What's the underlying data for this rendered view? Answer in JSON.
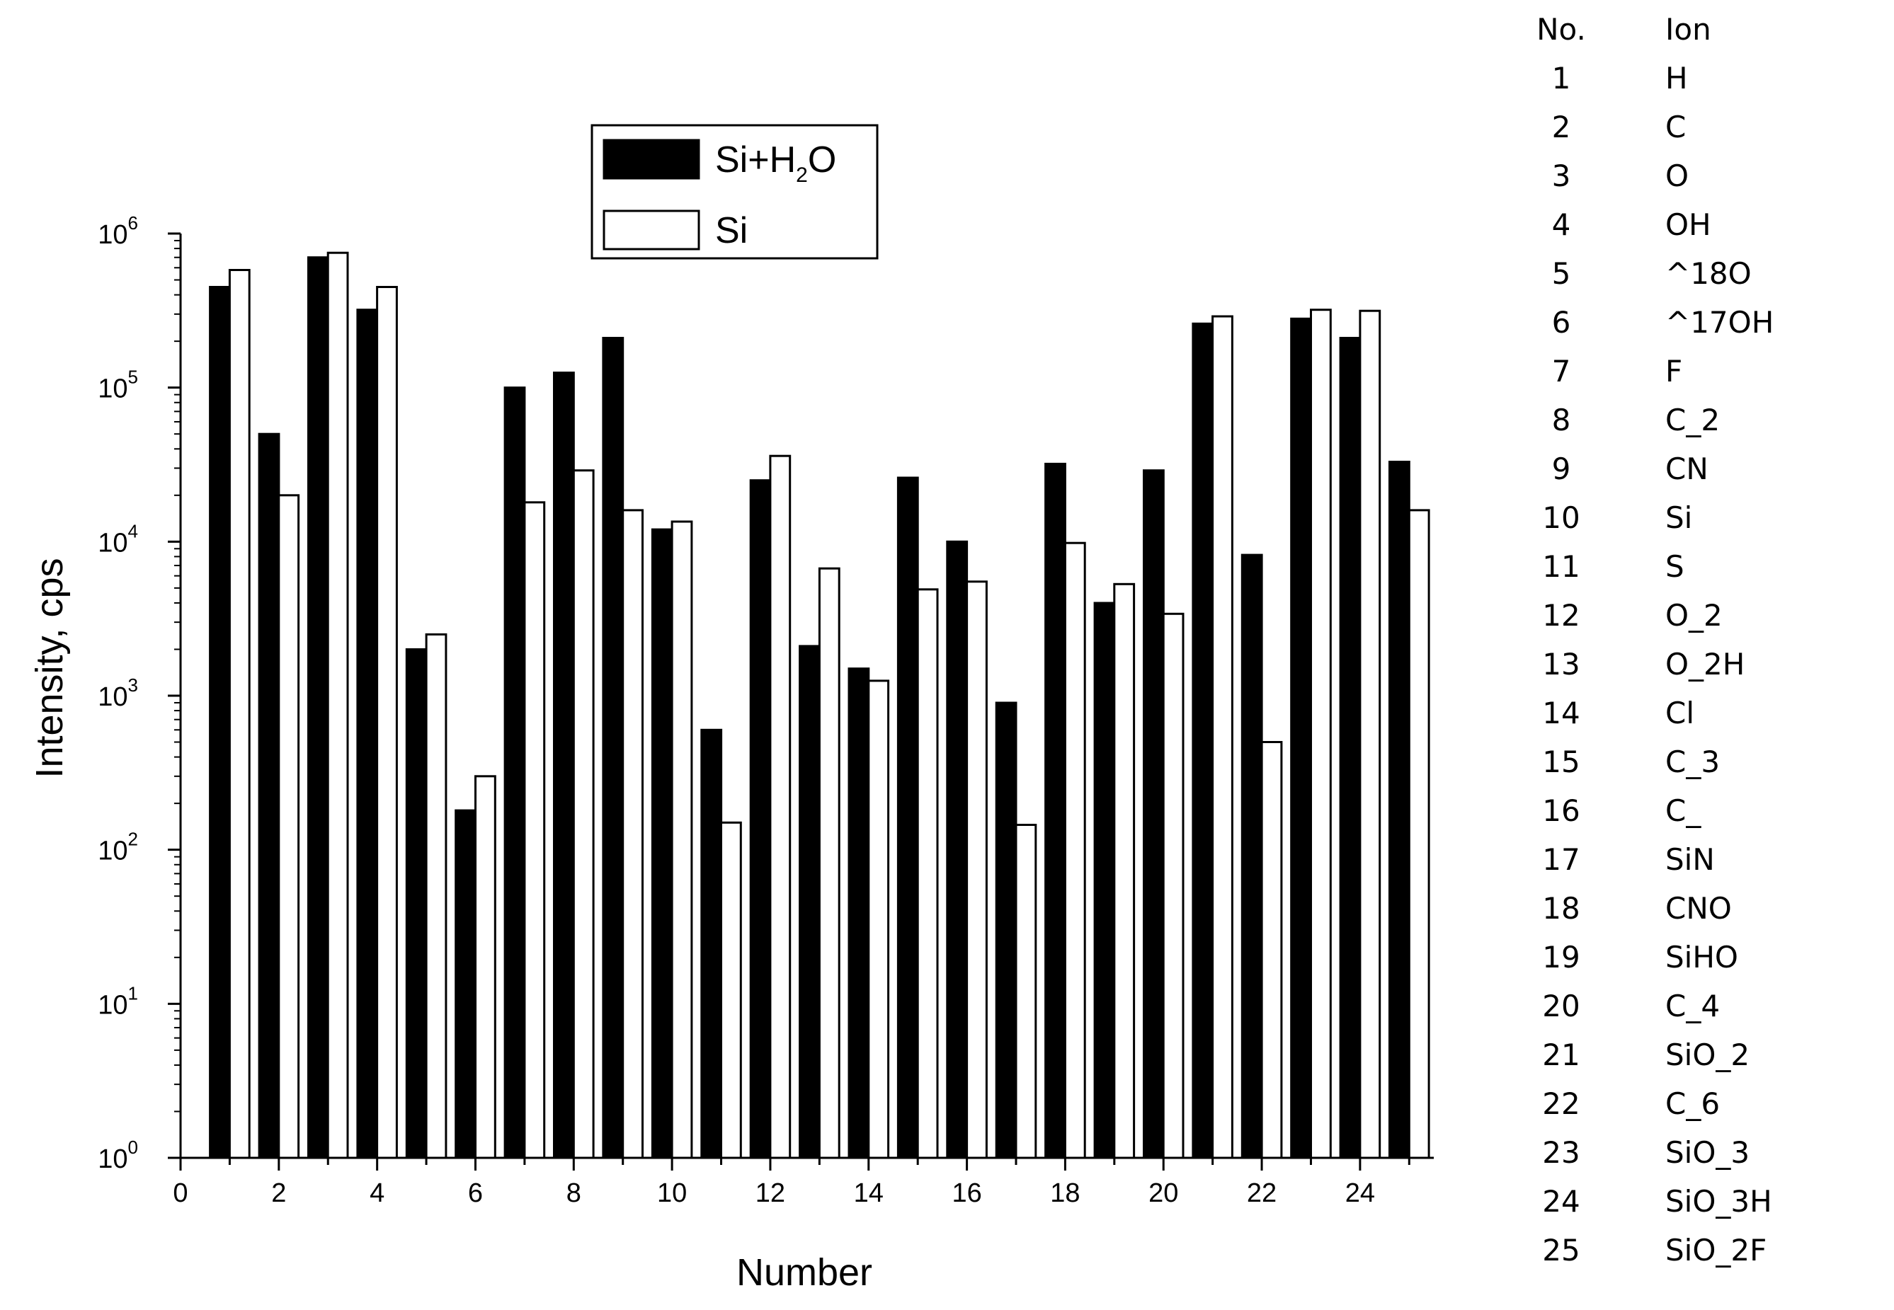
{
  "chart_data": {
    "type": "bar",
    "xlabel": "Number",
    "ylabel": "Intensity, cps",
    "yscale": "log",
    "ylim": [
      1,
      1000000
    ],
    "xlim": [
      0,
      25.5
    ],
    "x_ticks": [
      "0",
      "2",
      "4",
      "6",
      "8",
      "10",
      "12",
      "14",
      "16",
      "18",
      "20",
      "22",
      "24"
    ],
    "y_ticks": [
      {
        "base": "10",
        "exp": "0"
      },
      {
        "base": "10",
        "exp": "1"
      },
      {
        "base": "10",
        "exp": "2"
      },
      {
        "base": "10",
        "exp": "3"
      },
      {
        "base": "10",
        "exp": "4"
      },
      {
        "base": "10",
        "exp": "5"
      },
      {
        "base": "10",
        "exp": "6"
      }
    ],
    "legend_position": "top-center",
    "legend_entries": [
      {
        "label_parts": [
          "Si+H",
          "2",
          "O"
        ],
        "color": "#000000"
      },
      {
        "label_parts": [
          "Si"
        ],
        "color": "#ffffff"
      }
    ],
    "categories": [
      1,
      2,
      3,
      4,
      5,
      6,
      7,
      8,
      9,
      10,
      11,
      12,
      13,
      14,
      15,
      16,
      17,
      18,
      19,
      20,
      21,
      22,
      23,
      24,
      25
    ],
    "series": [
      {
        "values": [
          450000,
          50000,
          700000,
          320000,
          2000,
          180,
          100000,
          125000,
          210000,
          12000,
          600,
          25000,
          2100,
          1500,
          26000,
          10000,
          900,
          32000,
          4000,
          29000,
          260000,
          8200,
          280000,
          210000,
          33000
        ],
        "color": "#000000"
      },
      {
        "values": [
          580000,
          20000,
          750000,
          450000,
          2500,
          300,
          18000,
          29000,
          16000,
          13500,
          150,
          36000,
          6700,
          1250,
          4900,
          5500,
          145,
          9800,
          5300,
          3400,
          290000,
          500,
          320000,
          315000,
          16000
        ],
        "color": "#ffffff"
      }
    ]
  },
  "ion_table": {
    "header": {
      "no": "No.",
      "ion": "Ion"
    },
    "rows": [
      {
        "no": "1",
        "ion": "H"
      },
      {
        "no": "2",
        "ion": "C"
      },
      {
        "no": "3",
        "ion": "O"
      },
      {
        "no": "4",
        "ion": "OH"
      },
      {
        "no": "5",
        "ion": "^18O"
      },
      {
        "no": "6",
        "ion": "^17OH"
      },
      {
        "no": "7",
        "ion": "F"
      },
      {
        "no": "8",
        "ion": "C_2"
      },
      {
        "no": "9",
        "ion": "CN"
      },
      {
        "no": "10",
        "ion": "Si"
      },
      {
        "no": "11",
        "ion": "S"
      },
      {
        "no": "12",
        "ion": "O_2"
      },
      {
        "no": "13",
        "ion": "O_2H"
      },
      {
        "no": "14",
        "ion": "Cl"
      },
      {
        "no": "15",
        "ion": "C_3"
      },
      {
        "no": "16",
        "ion": "C_"
      },
      {
        "no": "17",
        "ion": "SiN"
      },
      {
        "no": "18",
        "ion": "CNO"
      },
      {
        "no": "19",
        "ion": "SiHO"
      },
      {
        "no": "20",
        "ion": "C_4"
      },
      {
        "no": "21",
        "ion": "SiO_2"
      },
      {
        "no": "22",
        "ion": "C_6"
      },
      {
        "no": "23",
        "ion": "SiO_3"
      },
      {
        "no": "24",
        "ion": "SiO_3H"
      },
      {
        "no": "25",
        "ion": "SiO_2F"
      }
    ]
  }
}
